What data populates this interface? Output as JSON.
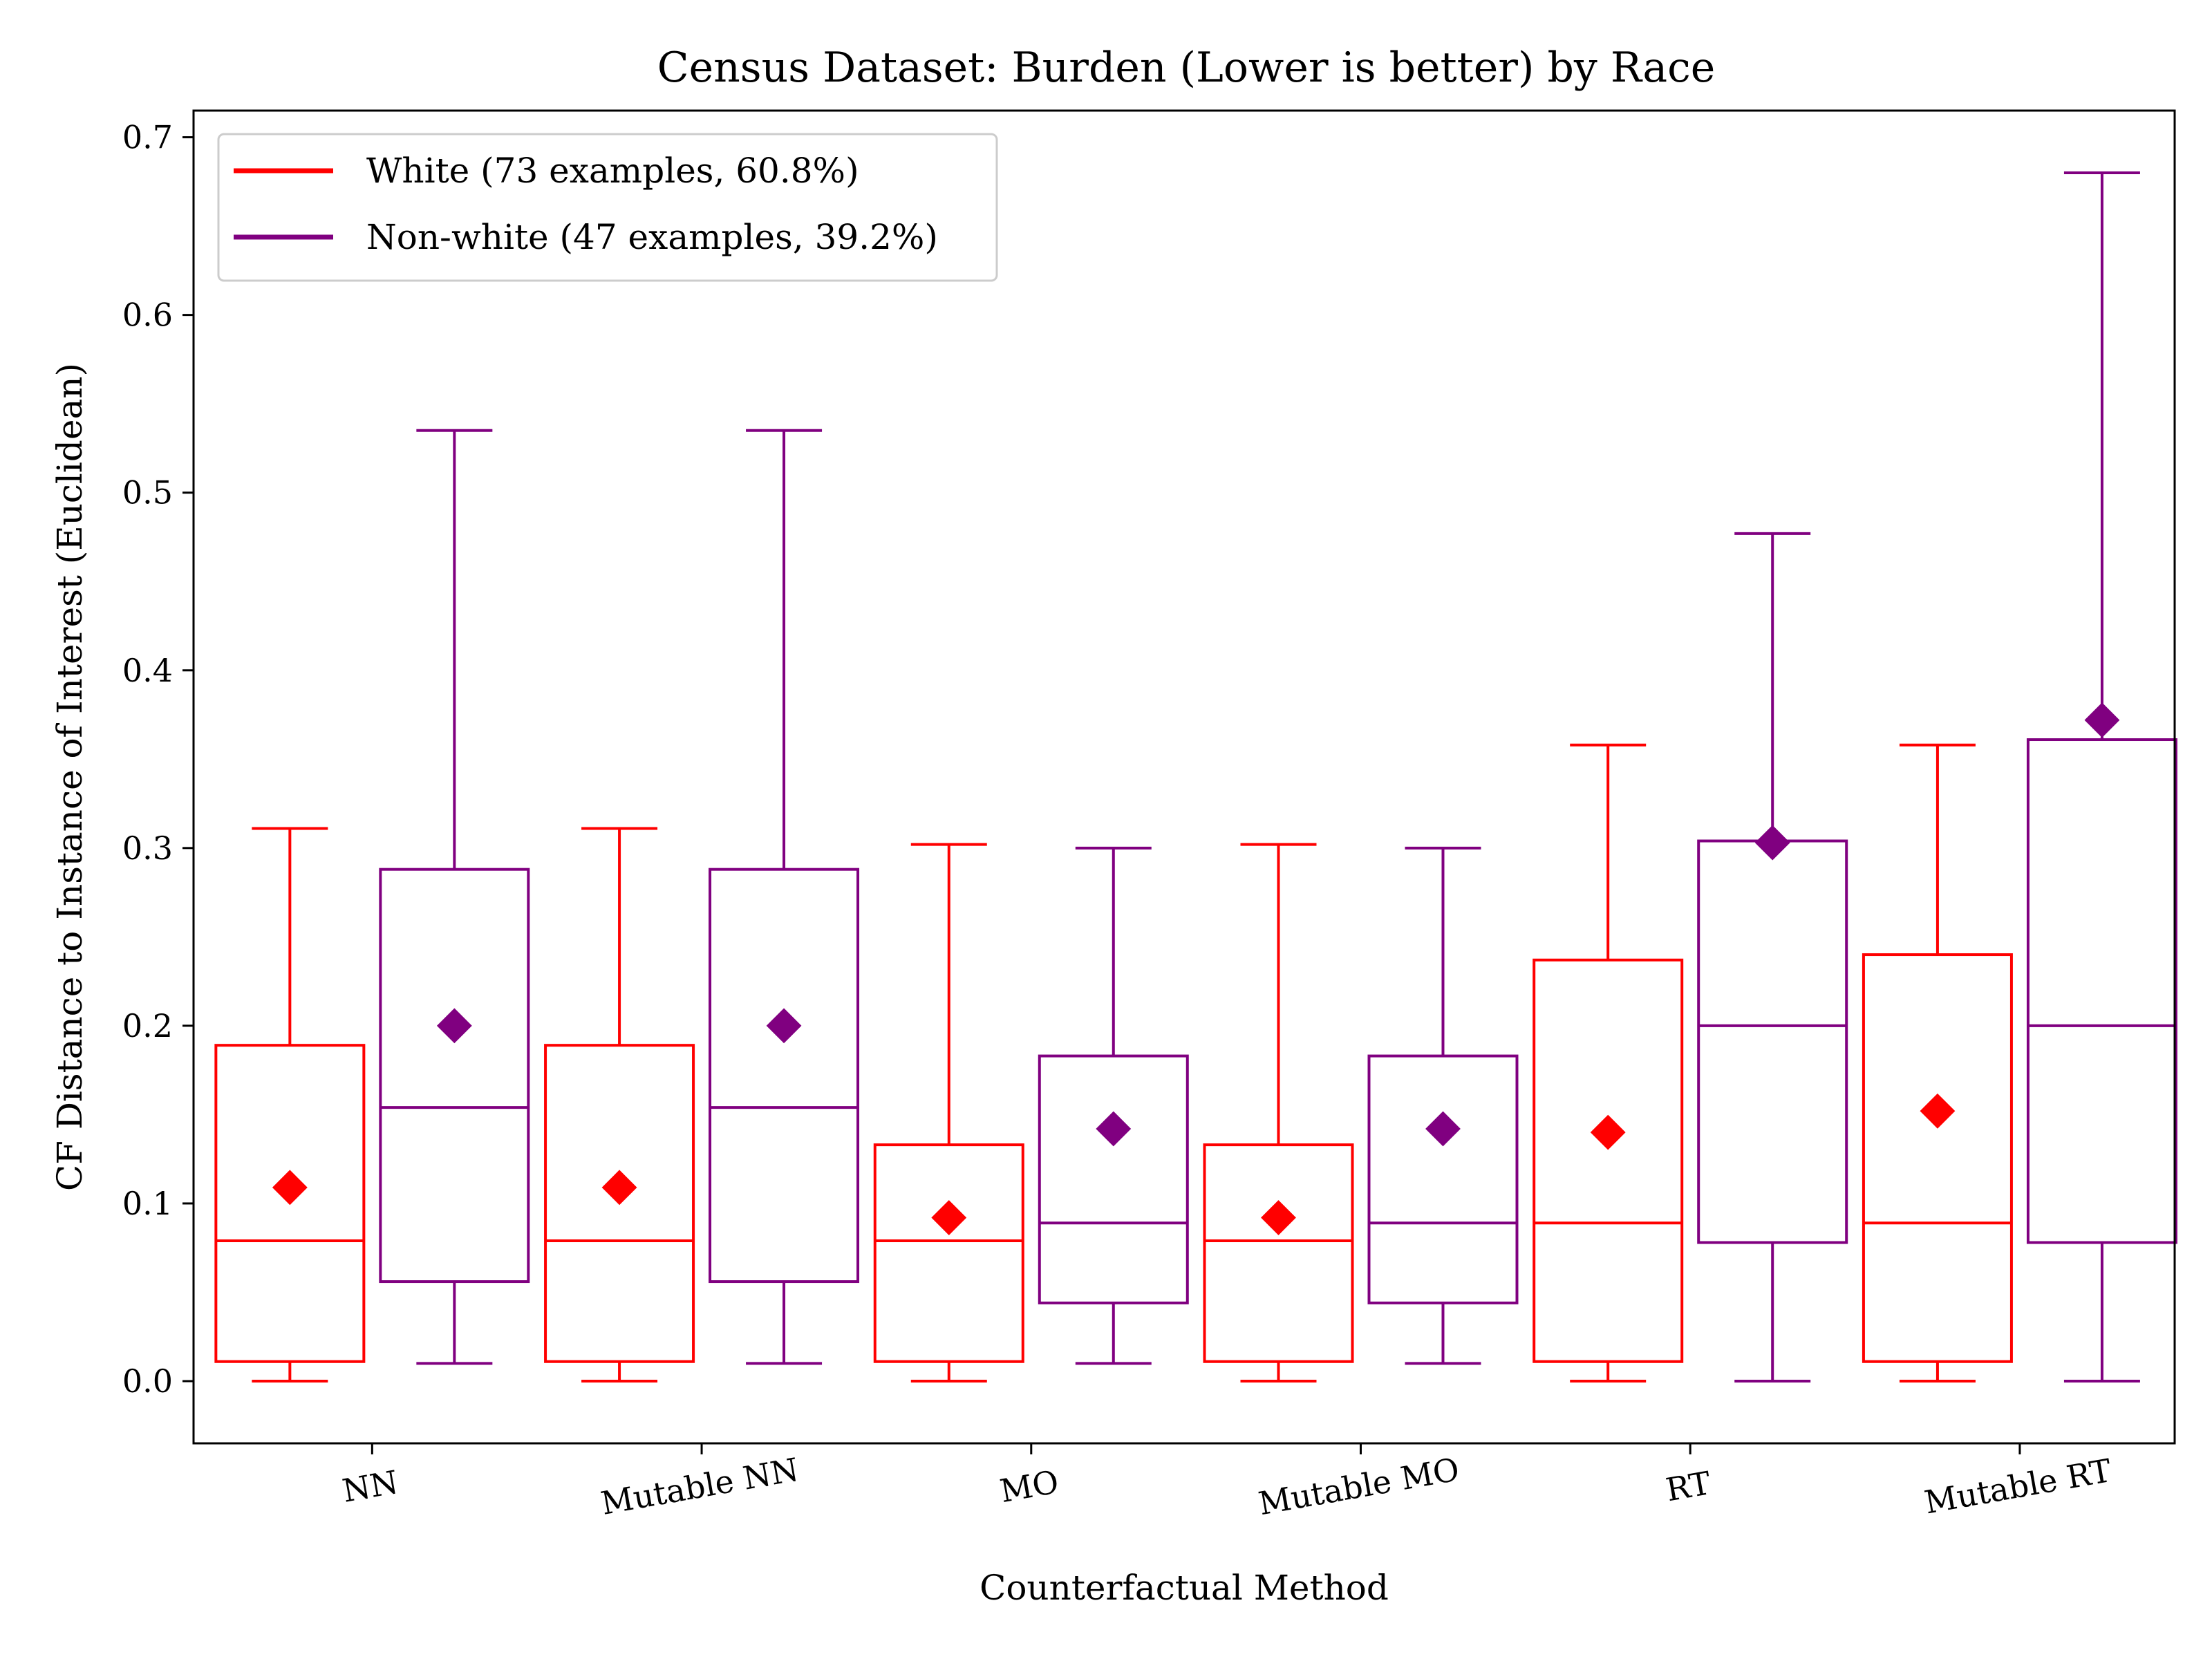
{
  "chart_data": {
    "type": "box",
    "title": "Census Dataset: Burden (Lower is better) by Race",
    "xlabel": "Counterfactual Method",
    "ylabel": "CF Distance to Instance of Interest (Euclidean)",
    "ylim": [
      -0.035,
      0.715
    ],
    "yticks": [
      0.0,
      0.1,
      0.2,
      0.3,
      0.4,
      0.5,
      0.6,
      0.7
    ],
    "ytick_labels": [
      "0.0",
      "0.1",
      "0.2",
      "0.3",
      "0.4",
      "0.5",
      "0.6",
      "0.7"
    ],
    "categories": [
      "NN",
      "Mutable NN",
      "MO",
      "Mutable MO",
      "RT",
      "Mutable RT"
    ],
    "grid": false,
    "legend_position": "upper-left",
    "mean_marker": "diamond",
    "series": [
      {
        "name": "White (73 examples, 60.8%)",
        "color": "#ff0000",
        "boxes": [
          {
            "whisker_low": 0.0,
            "q1": 0.011,
            "median": 0.079,
            "q3": 0.189,
            "whisker_high": 0.311,
            "mean": 0.109
          },
          {
            "whisker_low": 0.0,
            "q1": 0.011,
            "median": 0.079,
            "q3": 0.189,
            "whisker_high": 0.311,
            "mean": 0.109
          },
          {
            "whisker_low": 0.0,
            "q1": 0.011,
            "median": 0.079,
            "q3": 0.133,
            "whisker_high": 0.302,
            "mean": 0.092
          },
          {
            "whisker_low": 0.0,
            "q1": 0.011,
            "median": 0.079,
            "q3": 0.133,
            "whisker_high": 0.302,
            "mean": 0.092
          },
          {
            "whisker_low": 0.0,
            "q1": 0.011,
            "median": 0.089,
            "q3": 0.237,
            "whisker_high": 0.358,
            "mean": 0.14
          },
          {
            "whisker_low": 0.0,
            "q1": 0.011,
            "median": 0.089,
            "q3": 0.24,
            "whisker_high": 0.358,
            "mean": 0.152
          }
        ]
      },
      {
        "name": "Non-white (47 examples, 39.2%)",
        "color": "#800080",
        "boxes": [
          {
            "whisker_low": 0.01,
            "q1": 0.056,
            "median": 0.154,
            "q3": 0.288,
            "whisker_high": 0.535,
            "mean": 0.2
          },
          {
            "whisker_low": 0.01,
            "q1": 0.056,
            "median": 0.154,
            "q3": 0.288,
            "whisker_high": 0.535,
            "mean": 0.2
          },
          {
            "whisker_low": 0.01,
            "q1": 0.044,
            "median": 0.089,
            "q3": 0.183,
            "whisker_high": 0.3,
            "mean": 0.142
          },
          {
            "whisker_low": 0.01,
            "q1": 0.044,
            "median": 0.089,
            "q3": 0.183,
            "whisker_high": 0.3,
            "mean": 0.142
          },
          {
            "whisker_low": 0.0,
            "q1": 0.078,
            "median": 0.2,
            "q3": 0.304,
            "whisker_high": 0.477,
            "mean": 0.303
          },
          {
            "whisker_low": 0.0,
            "q1": 0.078,
            "median": 0.2,
            "q3": 0.361,
            "whisker_high": 0.68,
            "mean": 0.372
          }
        ]
      }
    ]
  }
}
